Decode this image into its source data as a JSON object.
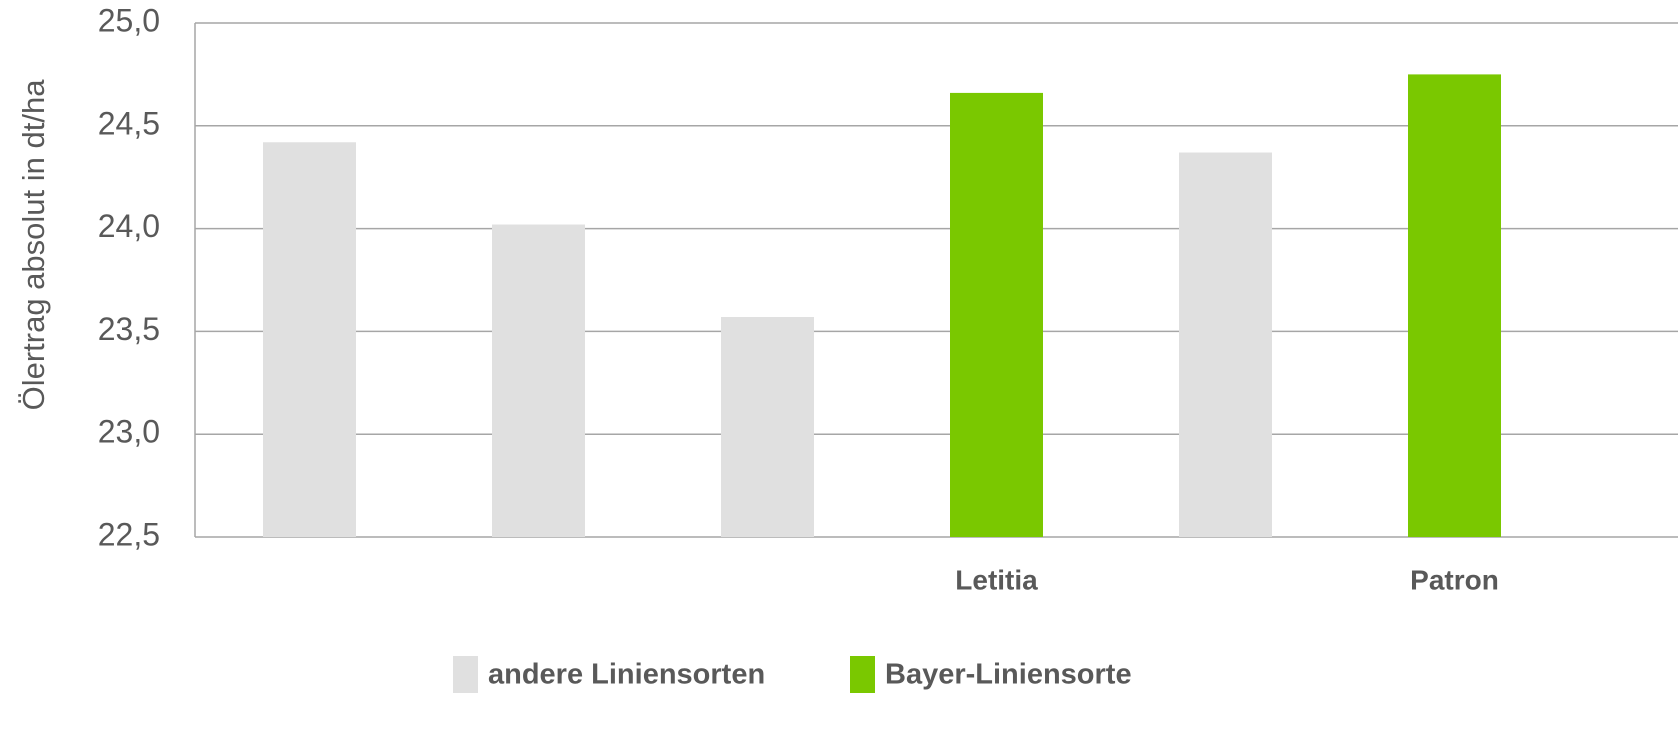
{
  "chart_data": {
    "type": "bar",
    "y_label": "Ölertrag absolut in dt/ha",
    "categories": [
      null,
      null,
      null,
      "Letitia",
      null,
      "Patron"
    ],
    "series": [
      {
        "name": "andere Liniensorten",
        "color": "#e0e0e0",
        "values": [
          24.42,
          24.02,
          23.57,
          null,
          24.37,
          null
        ]
      },
      {
        "name": "Bayer-Liniensorte",
        "color": "#7ac800",
        "values": [
          null,
          null,
          null,
          24.66,
          null,
          24.75
        ]
      }
    ],
    "ylim": [
      22.5,
      25.0
    ],
    "yticks": [
      {
        "value": 22.5,
        "label": "22,5"
      },
      {
        "value": 23.0,
        "label": "23,0"
      },
      {
        "value": 23.5,
        "label": "23,5"
      },
      {
        "value": 24.0,
        "label": "24,0"
      },
      {
        "value": 24.5,
        "label": "24,5"
      },
      {
        "value": 25.0,
        "label": "25,0"
      }
    ],
    "grid": true
  }
}
